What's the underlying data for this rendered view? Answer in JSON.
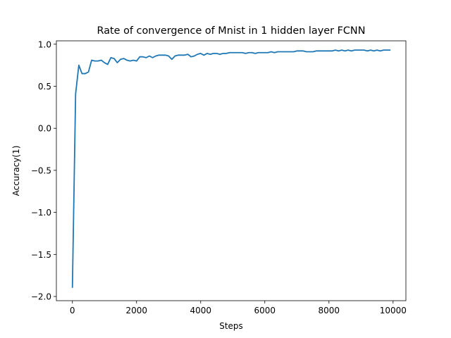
{
  "chart_data": {
    "type": "line",
    "title": "Rate of convergence of Mnist in 1 hidden layer FCNN",
    "xlabel": "Steps",
    "ylabel": "Accuracy(1)",
    "xlim": [
      -500,
      10400
    ],
    "ylim": [
      -2.05,
      1.04
    ],
    "xticks": [
      0,
      2000,
      4000,
      6000,
      8000,
      10000
    ],
    "xtick_labels": [
      "0",
      "2000",
      "4000",
      "6000",
      "8000",
      "10000"
    ],
    "yticks": [
      1.0,
      0.5,
      0.0,
      -0.5,
      -1.0,
      -1.5,
      -2.0
    ],
    "ytick_labels": [
      "1.0",
      "0.5",
      "0.0",
      "−0.5",
      "−1.0",
      "−1.5",
      "−2.0"
    ],
    "grid": false,
    "legend": "none",
    "series": [
      {
        "color": "#1f77b4",
        "x": [
          0,
          100,
          200,
          300,
          400,
          500,
          600,
          700,
          800,
          900,
          1000,
          1100,
          1200,
          1300,
          1400,
          1500,
          1600,
          1700,
          1800,
          1900,
          2000,
          2100,
          2200,
          2300,
          2400,
          2500,
          2600,
          2700,
          2800,
          2900,
          3000,
          3100,
          3200,
          3300,
          3400,
          3500,
          3600,
          3700,
          3800,
          3900,
          4000,
          4100,
          4200,
          4300,
          4400,
          4500,
          4600,
          4700,
          4800,
          4900,
          5000,
          5100,
          5200,
          5300,
          5400,
          5500,
          5600,
          5700,
          5800,
          5900,
          6000,
          6100,
          6200,
          6300,
          6400,
          6500,
          6600,
          6700,
          6800,
          6900,
          7000,
          7100,
          7200,
          7300,
          7400,
          7500,
          7600,
          7700,
          7800,
          7900,
          8000,
          8100,
          8200,
          8300,
          8400,
          8500,
          8600,
          8700,
          8800,
          8900,
          9000,
          9100,
          9200,
          9300,
          9400,
          9500,
          9600,
          9700,
          9800,
          9900
        ],
        "y": [
          -1.89,
          0.41,
          0.75,
          0.65,
          0.65,
          0.67,
          0.81,
          0.8,
          0.8,
          0.81,
          0.78,
          0.76,
          0.84,
          0.83,
          0.78,
          0.82,
          0.83,
          0.81,
          0.8,
          0.81,
          0.8,
          0.85,
          0.85,
          0.84,
          0.86,
          0.84,
          0.86,
          0.87,
          0.87,
          0.87,
          0.86,
          0.82,
          0.86,
          0.87,
          0.87,
          0.87,
          0.88,
          0.85,
          0.86,
          0.88,
          0.89,
          0.87,
          0.89,
          0.88,
          0.89,
          0.89,
          0.88,
          0.89,
          0.89,
          0.9,
          0.9,
          0.9,
          0.9,
          0.9,
          0.89,
          0.9,
          0.9,
          0.89,
          0.9,
          0.9,
          0.9,
          0.9,
          0.91,
          0.9,
          0.91,
          0.91,
          0.91,
          0.91,
          0.91,
          0.91,
          0.92,
          0.92,
          0.92,
          0.91,
          0.91,
          0.91,
          0.92,
          0.92,
          0.92,
          0.92,
          0.92,
          0.92,
          0.93,
          0.92,
          0.93,
          0.92,
          0.93,
          0.92,
          0.93,
          0.93,
          0.93,
          0.93,
          0.92,
          0.93,
          0.92,
          0.93,
          0.92,
          0.93,
          0.93,
          0.93
        ]
      }
    ]
  }
}
